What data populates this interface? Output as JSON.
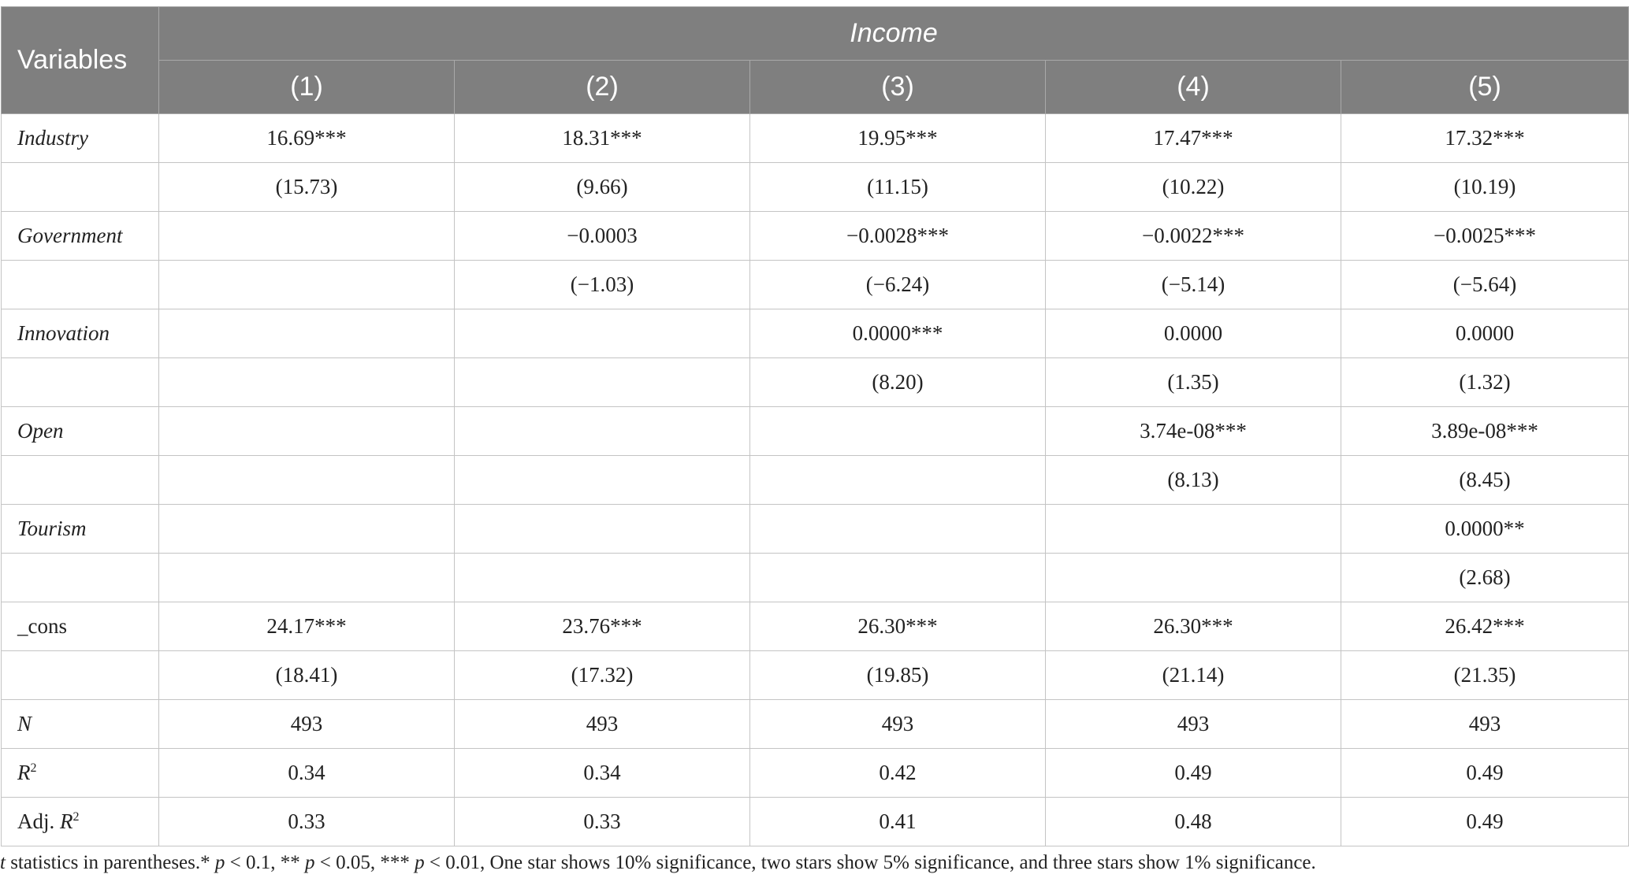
{
  "header": {
    "variables_label": "Variables",
    "group_label": "Income",
    "columns": [
      "(1)",
      "(2)",
      "(3)",
      "(4)",
      "(5)"
    ]
  },
  "rows": [
    {
      "label": "Industry",
      "italic": true,
      "values": [
        "16.69***",
        "18.31***",
        "19.95***",
        "17.47***",
        "17.32***"
      ]
    },
    {
      "label": "",
      "italic": false,
      "values": [
        "(15.73)",
        "(9.66)",
        "(11.15)",
        "(10.22)",
        "(10.19)"
      ]
    },
    {
      "label": "Government",
      "italic": true,
      "values": [
        "",
        "−0.0003",
        "−0.0028***",
        "−0.0022***",
        "−0.0025***"
      ]
    },
    {
      "label": "",
      "italic": false,
      "values": [
        "",
        "(−1.03)",
        "(−6.24)",
        "(−5.14)",
        "(−5.64)"
      ]
    },
    {
      "label": "Innovation",
      "italic": true,
      "values": [
        "",
        "",
        "0.0000***",
        "0.0000",
        "0.0000"
      ]
    },
    {
      "label": "",
      "italic": false,
      "values": [
        "",
        "",
        "(8.20)",
        "(1.35)",
        "(1.32)"
      ]
    },
    {
      "label": "Open",
      "italic": true,
      "values": [
        "",
        "",
        "",
        "3.74e-08***",
        "3.89e-08***"
      ]
    },
    {
      "label": "",
      "italic": false,
      "values": [
        "",
        "",
        "",
        "(8.13)",
        "(8.45)"
      ]
    },
    {
      "label": "Tourism",
      "italic": true,
      "values": [
        "",
        "",
        "",
        "",
        "0.0000**"
      ]
    },
    {
      "label": "",
      "italic": false,
      "values": [
        "",
        "",
        "",
        "",
        "(2.68)"
      ]
    },
    {
      "label": "_cons",
      "italic": false,
      "values": [
        "24.17***",
        "23.76***",
        "26.30***",
        "26.30***",
        "26.42***"
      ]
    },
    {
      "label": "",
      "italic": false,
      "values": [
        "(18.41)",
        "(17.32)",
        "(19.85)",
        "(21.14)",
        "(21.35)"
      ]
    },
    {
      "label": "N",
      "italic": true,
      "values": [
        "493",
        "493",
        "493",
        "493",
        "493"
      ]
    },
    {
      "label": "R2",
      "italic": false,
      "values": [
        "0.34",
        "0.34",
        "0.42",
        "0.49",
        "0.49"
      ]
    },
    {
      "label": "Adj. R2",
      "italic": false,
      "values": [
        "0.33",
        "0.33",
        "0.41",
        "0.48",
        "0.49"
      ]
    }
  ],
  "footnote": {
    "t": "t",
    "p": "p",
    "p_2": "p",
    "p_3": "p",
    "part1": " statistics in parentheses.* ",
    "part2": " < 0.1, ** ",
    "part3": " < 0.05, *** ",
    "part4": " < 0.01, One star shows 10% significance, two stars show 5% significance, and three stars show 1% significance."
  }
}
